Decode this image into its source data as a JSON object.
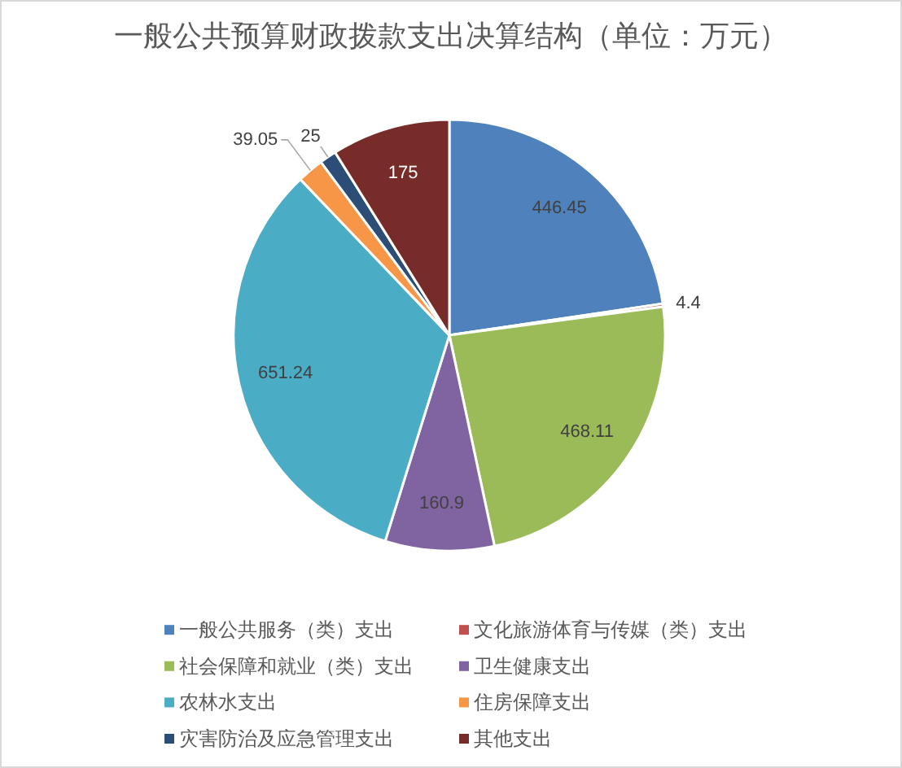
{
  "chart_data": {
    "type": "pie",
    "title": "一般公共预算财政拨款支出决算结构（单位：万元）",
    "categories": [
      "一般公共服务（类）支出",
      "文化旅游体育与传媒（类）支出",
      "社会保障和就业（类）支出",
      "卫生健康支出",
      "农林水支出",
      "住房保障支出",
      "灾害防治及应急管理支出",
      "其他支出"
    ],
    "values": [
      446.45,
      4.4,
      468.11,
      160.9,
      651.24,
      39.05,
      25,
      175
    ],
    "colors": [
      "#4f81bd",
      "#c0504d",
      "#9bbb59",
      "#8064a2",
      "#4bacc6",
      "#f79646",
      "#2c4d75",
      "#772c2a"
    ],
    "data_labels": true,
    "legend": "bottom"
  }
}
